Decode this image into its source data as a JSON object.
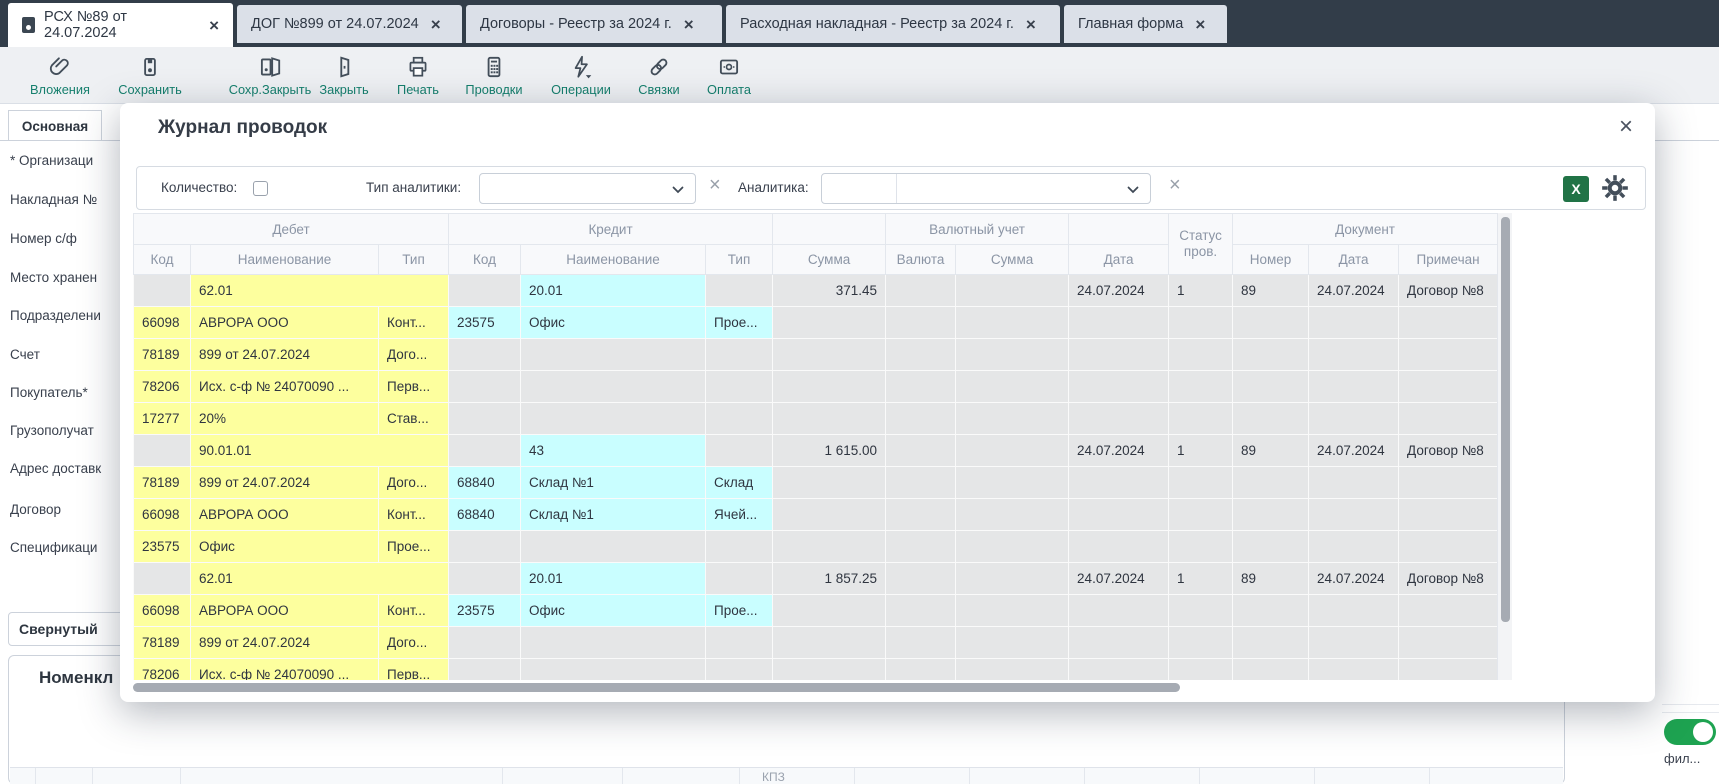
{
  "tabs": [
    {
      "label": "РСХ №89 от 24.07.2024",
      "active": true
    },
    {
      "label": "ДОГ №899 от 24.07.2024",
      "active": false
    },
    {
      "label": "Договоры - Реестр за 2024 г.",
      "active": false
    },
    {
      "label": "Расходная накладная - Реестр за 2024 г.",
      "active": false
    },
    {
      "label": "Главная форма",
      "active": false
    }
  ],
  "toolbar": {
    "items": [
      {
        "icon": "paperclip-icon",
        "label": "Вложения"
      },
      {
        "icon": "save-icon",
        "label": "Сохранить"
      },
      {
        "icon": "save-close-icon",
        "label": "Сохр.Закрыть"
      },
      {
        "icon": "door-close-icon",
        "label": "Закрыть"
      },
      {
        "icon": "printer-icon",
        "label": "Печать"
      },
      {
        "icon": "calculator-icon",
        "label": "Проводки"
      },
      {
        "icon": "lightning-icon",
        "label": "Операции"
      },
      {
        "icon": "link-icon",
        "label": "Связки"
      },
      {
        "icon": "payment-icon",
        "label": "Оплата"
      }
    ]
  },
  "form": {
    "tab": "Основная",
    "fields": [
      "* Организаци",
      "Накладная №",
      "Номер с/ф",
      "Место хранен",
      "Подразделени",
      "Счет",
      "Покупатель*",
      "Грузополучат",
      "Адрес доставк",
      "Договор",
      "Спецификаци"
    ],
    "collapsed_label": "Свернутый",
    "panel_title": "Номенкл",
    "bottom_cell": "КПЗ",
    "toggle_label": "фил..."
  },
  "modal": {
    "title": "Журнал проводок",
    "filters": {
      "quantity_label": "Количество:",
      "analytics_type_label": "Тип аналитики:",
      "analytics_label": "Аналитика:",
      "export_label": "X"
    },
    "table": {
      "groups": [
        "Дебет",
        "Кредит",
        "Валютный учет",
        "Документ"
      ],
      "status_header": "Статус пров.",
      "columns": [
        "Код",
        "Наименование",
        "Тип",
        "Код",
        "Наименование",
        "Тип",
        "Сумма",
        "Валюта",
        "Сумма",
        "Дата",
        "Номер",
        "Дата",
        "Примечан"
      ],
      "rows": [
        {
          "group": true,
          "debit": "62.01",
          "credit": "20.01",
          "sum": "371.45",
          "date": "24.07.2024",
          "status": "1",
          "doc_number": "89",
          "doc_date": "24.07.2024",
          "note": "Договор №8"
        },
        {
          "d_code": "66098",
          "d_name": "АВРОРА ООО",
          "d_type": "Конт...",
          "c_code": "23575",
          "c_name": "Офис",
          "c_type": "Прое..."
        },
        {
          "d_code": "78189",
          "d_name": "899 от 24.07.2024",
          "d_type": "Дого..."
        },
        {
          "d_code": "78206",
          "d_name": "Исх. с-ф № 24070090 ...",
          "d_type": "Перв..."
        },
        {
          "d_code": "17277",
          "d_name": "20%",
          "d_type": "Став..."
        },
        {
          "group": true,
          "debit": "90.01.01",
          "credit": "43",
          "sum": "1 615.00",
          "date": "24.07.2024",
          "status": "1",
          "doc_number": "89",
          "doc_date": "24.07.2024",
          "note": "Договор №8"
        },
        {
          "d_code": "78189",
          "d_name": "899 от 24.07.2024",
          "d_type": "Дого...",
          "c_code": "68840",
          "c_name": "Склад №1",
          "c_type": "Склад"
        },
        {
          "d_code": "66098",
          "d_name": "АВРОРА ООО",
          "d_type": "Конт...",
          "c_code": "68840",
          "c_name": "Склад №1",
          "c_type": "Ячей..."
        },
        {
          "d_code": "23575",
          "d_name": "Офис",
          "d_type": "Прое..."
        },
        {
          "group": true,
          "debit": "62.01",
          "credit": "20.01",
          "sum": "1 857.25",
          "date": "24.07.2024",
          "status": "1",
          "doc_number": "89",
          "doc_date": "24.07.2024",
          "note": "Договор №8"
        },
        {
          "d_code": "66098",
          "d_name": "АВРОРА ООО",
          "d_type": "Конт...",
          "c_code": "23575",
          "c_name": "Офис",
          "c_type": "Прое..."
        },
        {
          "d_code": "78189",
          "d_name": "899 от 24.07.2024",
          "d_type": "Дого..."
        },
        {
          "d_code": "78206",
          "d_name": "Исх. с-ф № 24070090 ...",
          "d_type": "Перв..."
        }
      ]
    }
  },
  "colors": {
    "tabbar_bg": "#323d49",
    "toolbar_label_teal": "#157f6d",
    "excel_green": "#217346",
    "row_yellow": "#fdff9e",
    "row_cyan": "#c9feff",
    "toggle_green": "#1ea351"
  }
}
